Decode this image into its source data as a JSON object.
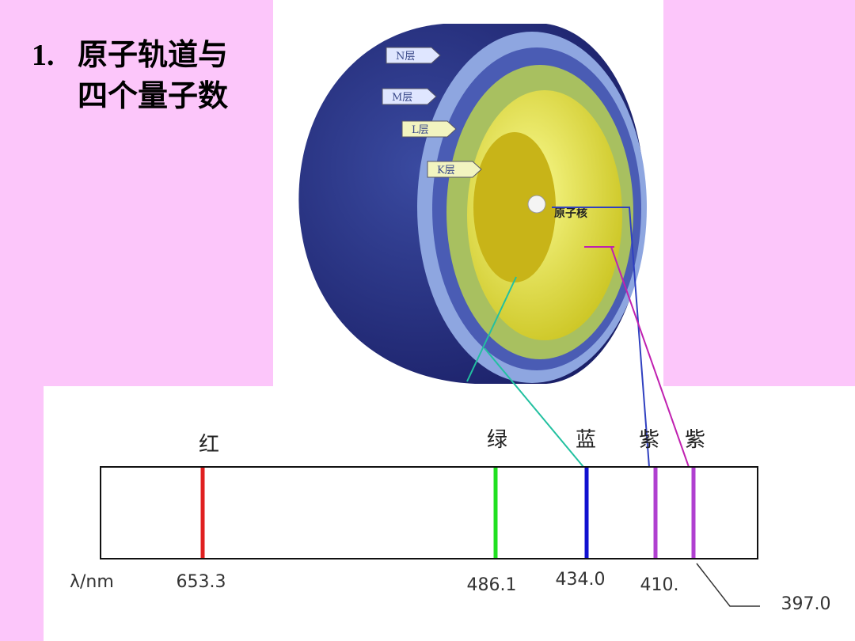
{
  "title": {
    "number": "1.",
    "lines": [
      "原子轨道与",
      "四个量子数"
    ]
  },
  "atom": {
    "layers": [
      "N层",
      "M层",
      "L层",
      "K层"
    ],
    "nucleus": "原子核"
  },
  "spectrum": {
    "colors": [
      "红",
      "绿",
      "蓝",
      "紫",
      "紫"
    ],
    "unit": "λ/nm",
    "wavelengths": [
      "653.3",
      "486.1",
      "434.0",
      "410.",
      "397.0"
    ]
  }
}
